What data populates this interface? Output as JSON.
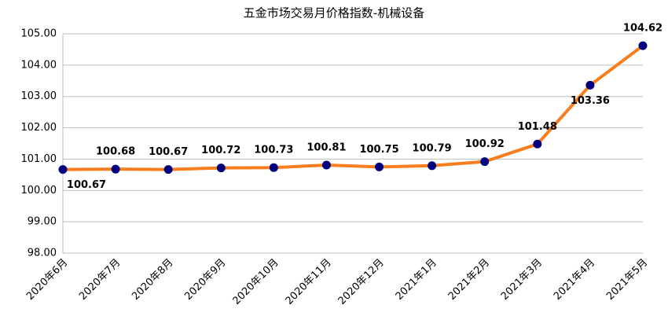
{
  "chart_data": {
    "type": "line",
    "title": "五金市场交易月价格指数-机械设备",
    "categories": [
      "2020年6月",
      "2020年7月",
      "2020年8月",
      "2020年9月",
      "2020年10月",
      "2020年11月",
      "2020年12月",
      "2021年1月",
      "2021年2月",
      "2021年3月",
      "2021年4月",
      "2021年5月"
    ],
    "values": [
      100.67,
      100.68,
      100.67,
      100.72,
      100.73,
      100.81,
      100.75,
      100.79,
      100.92,
      101.48,
      103.36,
      104.62
    ],
    "color": "#f97d1c",
    "marker_color": "#00007f",
    "ylim": [
      98,
      105
    ],
    "yticks": [
      {
        "value": 98,
        "label": "98.00"
      },
      {
        "value": 99,
        "label": "99.00"
      },
      {
        "value": 100,
        "label": "100.00"
      },
      {
        "value": 101,
        "label": "101.00"
      },
      {
        "value": 102,
        "label": "102.00"
      },
      {
        "value": 103,
        "label": "103.00"
      },
      {
        "value": 104,
        "label": "104.00"
      },
      {
        "value": 105,
        "label": "105.00"
      }
    ],
    "grid": true
  }
}
